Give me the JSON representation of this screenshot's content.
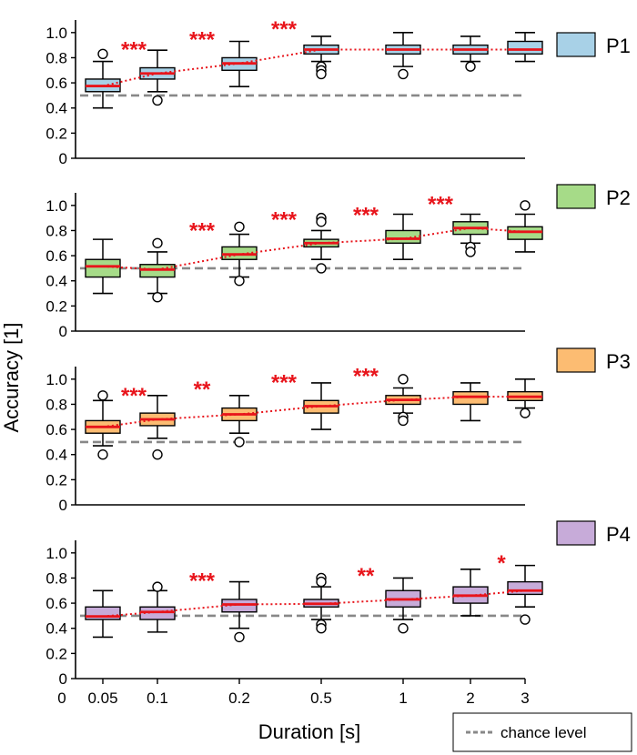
{
  "chart_data": {
    "type": "box",
    "xlabel": "Duration [s]",
    "ylabel": "Accuracy [1]",
    "x_zero_label": "0",
    "categories": [
      "0.05",
      "0.1",
      "0.2",
      "0.5",
      "1",
      "2",
      "3"
    ],
    "ylim": [
      0,
      1.1
    ],
    "yticks": [
      "0",
      "0.2",
      "0.4",
      "0.6",
      "0.8",
      "1.0"
    ],
    "chance_level": 0.5,
    "chance_label": "chance level",
    "colors": {
      "median_line": "#e8141b",
      "trend_line": "#e8141b",
      "significance": "#e8141b",
      "chance_line": "#888888",
      "box_outline": "#000000"
    },
    "panels": [
      {
        "name": "P1",
        "color": "#a8d1e7",
        "boxes": [
          {
            "whisker_low": 0.4,
            "q1": 0.53,
            "median": 0.575,
            "q3": 0.63,
            "whisker_high": 0.77,
            "outliers": [
              0.83
            ]
          },
          {
            "whisker_low": 0.53,
            "q1": 0.63,
            "median": 0.675,
            "q3": 0.72,
            "whisker_high": 0.86,
            "outliers": [
              0.46
            ]
          },
          {
            "whisker_low": 0.57,
            "q1": 0.7,
            "median": 0.755,
            "q3": 0.8,
            "whisker_high": 0.93,
            "outliers": []
          },
          {
            "whisker_low": 0.77,
            "q1": 0.83,
            "median": 0.865,
            "q3": 0.9,
            "whisker_high": 0.97,
            "outliers": [
              0.73,
              0.7,
              0.67
            ]
          },
          {
            "whisker_low": 0.73,
            "q1": 0.83,
            "median": 0.865,
            "q3": 0.9,
            "whisker_high": 1.0,
            "outliers": [
              0.67
            ]
          },
          {
            "whisker_low": 0.77,
            "q1": 0.83,
            "median": 0.865,
            "q3": 0.9,
            "whisker_high": 0.97,
            "outliers": [
              0.73
            ]
          },
          {
            "whisker_low": 0.77,
            "q1": 0.83,
            "median": 0.865,
            "q3": 0.93,
            "whisker_high": 1.0,
            "outliers": []
          }
        ],
        "significance": [
          {
            "after_index": 0,
            "label": "***"
          },
          {
            "after_index": 1,
            "label": "***"
          },
          {
            "after_index": 2,
            "label": "***"
          }
        ]
      },
      {
        "name": "P2",
        "color": "#a6db88",
        "boxes": [
          {
            "whisker_low": 0.3,
            "q1": 0.43,
            "median": 0.515,
            "q3": 0.57,
            "whisker_high": 0.73,
            "outliers": []
          },
          {
            "whisker_low": 0.3,
            "q1": 0.43,
            "median": 0.49,
            "q3": 0.53,
            "whisker_high": 0.63,
            "outliers": [
              0.7,
              0.27
            ]
          },
          {
            "whisker_low": 0.43,
            "q1": 0.57,
            "median": 0.61,
            "q3": 0.67,
            "whisker_high": 0.77,
            "outliers": [
              0.83,
              0.4
            ]
          },
          {
            "whisker_low": 0.57,
            "q1": 0.67,
            "median": 0.7,
            "q3": 0.73,
            "whisker_high": 0.8,
            "outliers": [
              0.9,
              0.87,
              0.5
            ]
          },
          {
            "whisker_low": 0.57,
            "q1": 0.7,
            "median": 0.735,
            "q3": 0.8,
            "whisker_high": 0.93,
            "outliers": []
          },
          {
            "whisker_low": 0.7,
            "q1": 0.77,
            "median": 0.82,
            "q3": 0.87,
            "whisker_high": 0.93,
            "outliers": [
              0.67,
              0.63
            ]
          },
          {
            "whisker_low": 0.63,
            "q1": 0.73,
            "median": 0.79,
            "q3": 0.83,
            "whisker_high": 0.93,
            "outliers": [
              1.0
            ]
          }
        ],
        "significance": [
          {
            "after_index": 1,
            "label": "***"
          },
          {
            "after_index": 2,
            "label": "***"
          },
          {
            "after_index": 3,
            "label": "***"
          },
          {
            "after_index": 4,
            "label": "***"
          }
        ]
      },
      {
        "name": "P3",
        "color": "#fcbc72",
        "boxes": [
          {
            "whisker_low": 0.47,
            "q1": 0.57,
            "median": 0.62,
            "q3": 0.67,
            "whisker_high": 0.83,
            "outliers": [
              0.87,
              0.4
            ]
          },
          {
            "whisker_low": 0.53,
            "q1": 0.63,
            "median": 0.68,
            "q3": 0.73,
            "whisker_high": 0.87,
            "outliers": [
              0.4
            ]
          },
          {
            "whisker_low": 0.57,
            "q1": 0.67,
            "median": 0.72,
            "q3": 0.77,
            "whisker_high": 0.87,
            "outliers": [
              0.5
            ]
          },
          {
            "whisker_low": 0.6,
            "q1": 0.73,
            "median": 0.785,
            "q3": 0.83,
            "whisker_high": 0.97,
            "outliers": []
          },
          {
            "whisker_low": 0.73,
            "q1": 0.8,
            "median": 0.835,
            "q3": 0.87,
            "whisker_high": 0.93,
            "outliers": [
              1.0,
              0.7,
              0.67
            ]
          },
          {
            "whisker_low": 0.67,
            "q1": 0.8,
            "median": 0.86,
            "q3": 0.9,
            "whisker_high": 0.97,
            "outliers": []
          },
          {
            "whisker_low": 0.77,
            "q1": 0.83,
            "median": 0.86,
            "q3": 0.9,
            "whisker_high": 1.0,
            "outliers": [
              0.73
            ]
          }
        ],
        "significance": [
          {
            "after_index": 0,
            "label": "***"
          },
          {
            "after_index": 1,
            "label": "**"
          },
          {
            "after_index": 2,
            "label": "***"
          },
          {
            "after_index": 3,
            "label": "***"
          }
        ]
      },
      {
        "name": "P4",
        "color": "#c7abd9",
        "boxes": [
          {
            "whisker_low": 0.33,
            "q1": 0.47,
            "median": 0.495,
            "q3": 0.57,
            "whisker_high": 0.7,
            "outliers": []
          },
          {
            "whisker_low": 0.37,
            "q1": 0.47,
            "median": 0.53,
            "q3": 0.57,
            "whisker_high": 0.7,
            "outliers": [
              0.73
            ]
          },
          {
            "whisker_low": 0.4,
            "q1": 0.53,
            "median": 0.59,
            "q3": 0.63,
            "whisker_high": 0.77,
            "outliers": [
              0.33
            ]
          },
          {
            "whisker_low": 0.47,
            "q1": 0.57,
            "median": 0.595,
            "q3": 0.63,
            "whisker_high": 0.73,
            "outliers": [
              0.8,
              0.77,
              0.43,
              0.4
            ]
          },
          {
            "whisker_low": 0.47,
            "q1": 0.57,
            "median": 0.63,
            "q3": 0.7,
            "whisker_high": 0.8,
            "outliers": [
              0.4
            ]
          },
          {
            "whisker_low": 0.5,
            "q1": 0.6,
            "median": 0.66,
            "q3": 0.73,
            "whisker_high": 0.87,
            "outliers": []
          },
          {
            "whisker_low": 0.57,
            "q1": 0.67,
            "median": 0.7,
            "q3": 0.77,
            "whisker_high": 0.9,
            "outliers": [
              0.47
            ]
          }
        ],
        "significance": [
          {
            "after_index": 1,
            "label": "***"
          },
          {
            "after_index": 3,
            "label": "**"
          },
          {
            "after_index": 5,
            "label": "*"
          }
        ]
      }
    ]
  }
}
